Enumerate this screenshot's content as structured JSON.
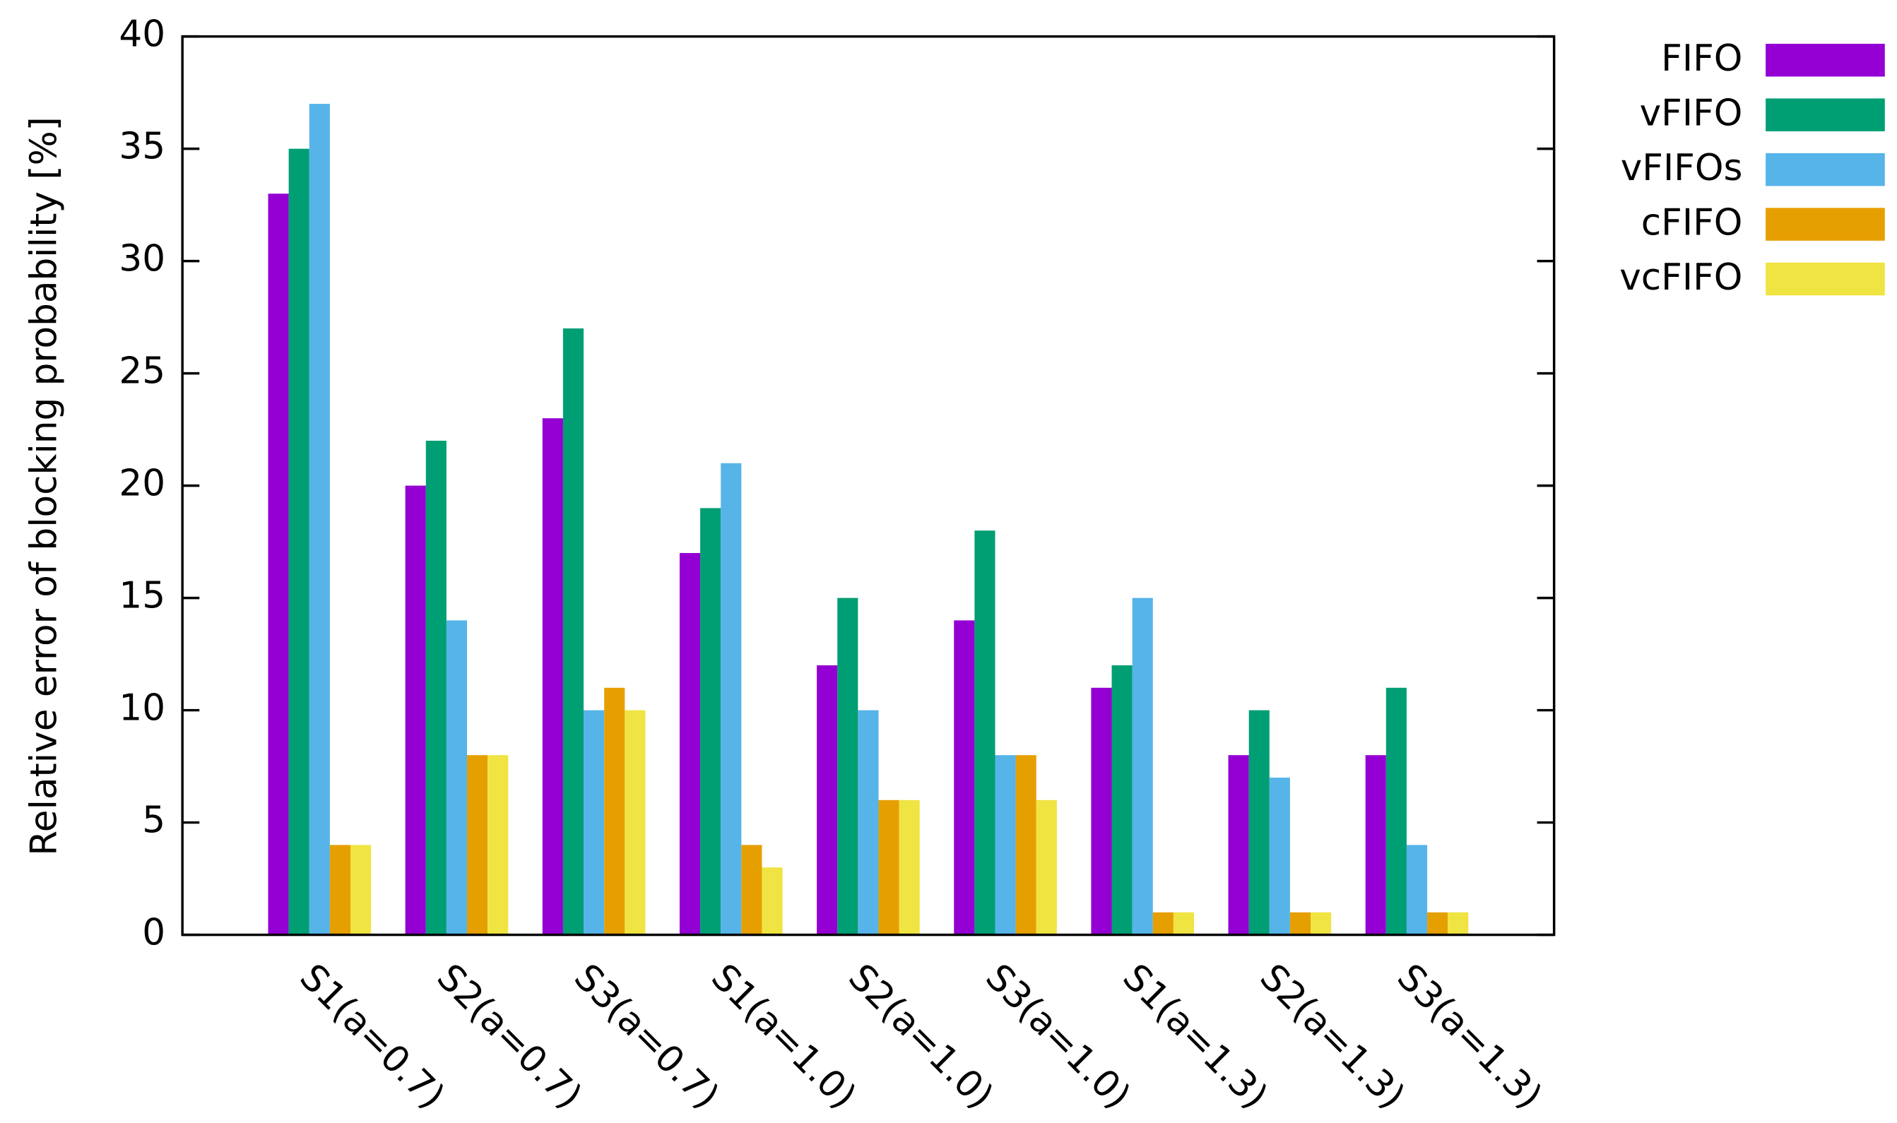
{
  "chart_data": {
    "type": "bar",
    "y_label": "Relative error of blocking probability [%]",
    "categories": [
      "S1(a=0.7)",
      "S2(a=0.7)",
      "S3(a=0.7)",
      "S1(a=1.0)",
      "S2(a=1.0)",
      "S3(a=1.0)",
      "S1(a=1.3)",
      "S2(a=1.3)",
      "S3(a=1.3)"
    ],
    "series": [
      {
        "name": "FIFO",
        "color": "#9400d3",
        "values": [
          33,
          20,
          23,
          17,
          12,
          14,
          11,
          8,
          8
        ]
      },
      {
        "name": "vFIFO",
        "color": "#009e73",
        "values": [
          35,
          22,
          27,
          19,
          15,
          18,
          12,
          10,
          11
        ]
      },
      {
        "name": "vFIFOs",
        "color": "#56b4e9",
        "values": [
          37,
          14,
          10,
          21,
          10,
          8,
          15,
          7,
          4
        ]
      },
      {
        "name": "cFIFO",
        "color": "#e69f00",
        "values": [
          4,
          8,
          11,
          4,
          6,
          8,
          1,
          1,
          1
        ]
      },
      {
        "name": "vcFIFO",
        "color": "#f0e442",
        "values": [
          4,
          8,
          10,
          3,
          6,
          6,
          1,
          1,
          1
        ]
      }
    ],
    "ylim": [
      0,
      40
    ],
    "yticks": [
      0,
      5,
      10,
      15,
      20,
      25,
      30,
      35,
      40
    ],
    "legend": "outside-top-right"
  }
}
